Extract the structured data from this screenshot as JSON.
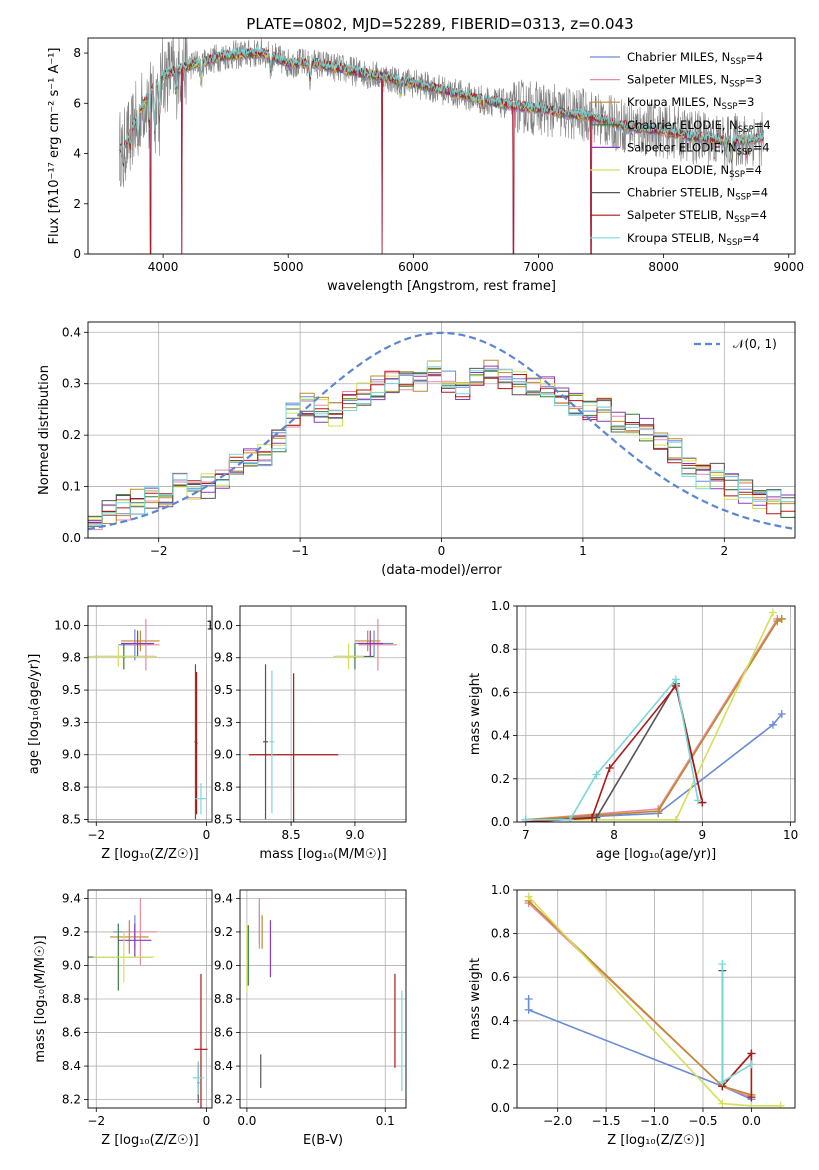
{
  "figure": {
    "title": "PLATE=0802, MJD=52289, FIBERID=0313, z=0.043"
  },
  "series": [
    {
      "name": "Chabrier MILES",
      "nssp": "4",
      "color": "#6a8ad8"
    },
    {
      "name": "Salpeter MILES",
      "nssp": "3",
      "color": "#e88aa0"
    },
    {
      "name": "Kroupa MILES",
      "nssp": "3",
      "color": "#c08a2a"
    },
    {
      "name": "Chabrier ELODIE",
      "nssp": "4",
      "color": "#3a7a3a"
    },
    {
      "name": "Salpeter ELODIE",
      "nssp": "4",
      "color": "#8a3ab8"
    },
    {
      "name": "Kroupa ELODIE",
      "nssp": "4",
      "color": "#d4e05a"
    },
    {
      "name": "Chabrier STELIB",
      "nssp": "4",
      "color": "#555555"
    },
    {
      "name": "Salpeter STELIB",
      "nssp": "4",
      "color": "#b01818"
    },
    {
      "name": "Kroupa STELIB",
      "nssp": "4",
      "color": "#7ad8d8"
    }
  ],
  "chart_data": [
    {
      "id": "spectrum",
      "type": "line",
      "xlabel": "wavelength [Angstrom, rest frame]",
      "ylabel": "Flux [fλ10⁻¹⁷ erg cm⁻² s⁻¹ A⁻¹]",
      "xlim": [
        3400,
        9050
      ],
      "ylim": [
        0,
        8.6
      ],
      "xticks": [
        4000,
        5000,
        6000,
        7000,
        8000,
        9000
      ],
      "yticks": [
        0,
        2,
        4,
        6,
        8
      ],
      "legend": "right",
      "data_color": "#808080",
      "data_range": [
        3650,
        8800
      ],
      "model_range": [
        3650,
        8800
      ],
      "model_continuum": [
        [
          3650,
          4.2
        ],
        [
          3700,
          4.4
        ],
        [
          3800,
          5.5
        ],
        [
          3900,
          6.5
        ],
        [
          4000,
          7.1
        ],
        [
          4200,
          7.5
        ],
        [
          4500,
          7.9
        ],
        [
          4800,
          8.0
        ],
        [
          5000,
          7.6
        ],
        [
          5200,
          7.6
        ],
        [
          5500,
          7.3
        ],
        [
          6000,
          6.8
        ],
        [
          6500,
          6.2
        ],
        [
          6800,
          5.9
        ],
        [
          7000,
          5.8
        ],
        [
          7200,
          5.6
        ],
        [
          7400,
          5.5
        ],
        [
          7600,
          5.2
        ],
        [
          7800,
          5.0
        ],
        [
          8000,
          4.9
        ],
        [
          8200,
          4.7
        ],
        [
          8500,
          4.5
        ],
        [
          8800,
          4.6
        ]
      ],
      "absorption": [
        [
          3680,
          0.8
        ],
        [
          3740,
          0.6
        ],
        [
          3800,
          1.2
        ],
        [
          3890,
          1.3
        ],
        [
          3935,
          1.8
        ],
        [
          3970,
          1.6
        ],
        [
          4102,
          0.8
        ],
        [
          4305,
          0.7
        ],
        [
          4861,
          0.5
        ],
        [
          5175,
          0.6
        ],
        [
          5895,
          0.5
        ],
        [
          6563,
          0.4
        ],
        [
          8498,
          0.5
        ],
        [
          8542,
          0.7
        ],
        [
          8662,
          0.6
        ]
      ],
      "spikes": [
        [
          3900,
          0
        ],
        [
          4150,
          0
        ],
        [
          5750,
          0
        ],
        [
          6800,
          0
        ],
        [
          7420,
          0
        ]
      ]
    },
    {
      "id": "residuals",
      "type": "histogram",
      "xlabel": "(data-model)/error",
      "ylabel": "Normed distribution",
      "xlim": [
        -2.5,
        2.5
      ],
      "ylim": [
        0,
        0.42
      ],
      "xticks": [
        -2,
        -1,
        0,
        1,
        2
      ],
      "yticks": [
        0.0,
        0.1,
        0.2,
        0.3,
        0.4
      ],
      "legend": "top-right",
      "normal_label": "𝒩(0, 1)",
      "normal_color": "#5b86d6",
      "bins": [
        -2.5,
        -2.4,
        -2.3,
        -2.2,
        -2.1,
        -2.0,
        -1.9,
        -1.8,
        -1.7,
        -1.6,
        -1.5,
        -1.4,
        -1.3,
        -1.2,
        -1.1,
        -1.0,
        -0.9,
        -0.8,
        -0.7,
        -0.6,
        -0.5,
        -0.4,
        -0.3,
        -0.2,
        -0.1,
        0.0,
        0.1,
        0.2,
        0.3,
        0.4,
        0.5,
        0.6,
        0.7,
        0.8,
        0.9,
        1.0,
        1.1,
        1.2,
        1.3,
        1.4,
        1.5,
        1.6,
        1.7,
        1.8,
        1.9,
        2.0,
        2.1,
        2.2,
        2.3,
        2.4,
        2.5
      ],
      "hist_base": [
        0.04,
        0.05,
        0.06,
        0.07,
        0.08,
        0.08,
        0.12,
        0.1,
        0.1,
        0.12,
        0.14,
        0.15,
        0.16,
        0.19,
        0.24,
        0.26,
        0.25,
        0.24,
        0.27,
        0.28,
        0.29,
        0.3,
        0.31,
        0.3,
        0.32,
        0.3,
        0.28,
        0.31,
        0.33,
        0.31,
        0.3,
        0.3,
        0.29,
        0.28,
        0.26,
        0.25,
        0.25,
        0.23,
        0.22,
        0.21,
        0.19,
        0.17,
        0.14,
        0.12,
        0.12,
        0.1,
        0.09,
        0.08,
        0.07,
        0.06
      ]
    },
    {
      "id": "age-z",
      "type": "scatter",
      "xlabel": "Z [log₁₀(Z/Z☉)]",
      "ylabel": "age  [log₁₀(age/yr)]",
      "xlim": [
        -2.15,
        0.1
      ],
      "ylim": [
        8.48,
        10.15
      ],
      "xticks": [
        -2,
        0
      ],
      "yticks": [
        8.5,
        8.75,
        9.0,
        9.25,
        9.5,
        9.75,
        10.0
      ],
      "points": [
        {
          "s": 0,
          "x": -1.3,
          "y": 9.85,
          "xe": 0.3,
          "ye": 0.12
        },
        {
          "s": 1,
          "x": -1.1,
          "y": 9.85,
          "xe": 0.25,
          "ye": 0.2
        },
        {
          "s": 2,
          "x": -1.2,
          "y": 9.88,
          "xe": 0.35,
          "ye": 0.08
        },
        {
          "s": 3,
          "x": -1.5,
          "y": 9.76,
          "xe": 0.55,
          "ye": 0.1
        },
        {
          "s": 4,
          "x": -1.25,
          "y": 9.86,
          "xe": 0.3,
          "ye": 0.1
        },
        {
          "s": 5,
          "x": -1.6,
          "y": 9.76,
          "xe": 0.7,
          "ye": 0.08
        },
        {
          "s": 6,
          "x": -0.2,
          "y": 9.1,
          "xe": 0.02,
          "ye": 0.6
        },
        {
          "s": 7,
          "x": -0.18,
          "y": 9.09,
          "xe": 0.02,
          "ye": 0.55
        },
        {
          "s": 8,
          "x": -0.1,
          "y": 8.66,
          "xe": 0.1,
          "ye": 0.12
        }
      ]
    },
    {
      "id": "age-mass",
      "type": "scatter",
      "xlabel": "mass [log₁₀(M/M☉)]",
      "ylabel": "",
      "xlim": [
        8.1,
        9.4
      ],
      "ylim": [
        8.48,
        10.15
      ],
      "xticks": [
        8.5,
        9.0
      ],
      "yticks": [
        8.5,
        8.75,
        9.0,
        9.25,
        9.5,
        9.75,
        10.0
      ],
      "points": [
        {
          "s": 0,
          "x": 9.15,
          "y": 9.86,
          "xe": 0.15,
          "ye": 0.1
        },
        {
          "s": 1,
          "x": 9.18,
          "y": 9.85,
          "xe": 0.15,
          "ye": 0.2
        },
        {
          "s": 2,
          "x": 9.1,
          "y": 9.88,
          "xe": 0.1,
          "ye": 0.08
        },
        {
          "s": 3,
          "x": 9.0,
          "y": 9.76,
          "xe": 0.15,
          "ye": 0.1
        },
        {
          "s": 4,
          "x": 9.12,
          "y": 9.86,
          "xe": 0.1,
          "ye": 0.1
        },
        {
          "s": 5,
          "x": 8.95,
          "y": 9.76,
          "xe": 0.12,
          "ye": 0.1
        },
        {
          "s": 6,
          "x": 8.3,
          "y": 9.1,
          "xe": 0.02,
          "ye": 0.6
        },
        {
          "s": 7,
          "x": 8.52,
          "y": 9.0,
          "xe": 0.35,
          "ye": 0.63
        },
        {
          "s": 8,
          "x": 8.35,
          "y": 9.1,
          "xe": 0.02,
          "ye": 0.55
        }
      ]
    },
    {
      "id": "weight-age",
      "type": "line",
      "xlabel": "age  [log₁₀(age/yr)]",
      "ylabel": "mass weight",
      "xlim": [
        6.9,
        10.05
      ],
      "ylim": [
        0,
        1.0
      ],
      "xticks": [
        7,
        8,
        9,
        10
      ],
      "yticks": [
        0.0,
        0.2,
        0.4,
        0.6,
        0.8,
        1.0
      ],
      "lines": [
        {
          "s": 0,
          "points": [
            [
              7.0,
              0.01
            ],
            [
              8.5,
              0.04
            ],
            [
              9.8,
              0.45
            ],
            [
              9.9,
              0.5
            ]
          ]
        },
        {
          "s": 1,
          "points": [
            [
              7.0,
              0.01
            ],
            [
              8.5,
              0.06
            ],
            [
              9.85,
              0.94
            ],
            [
              9.9,
              0.94
            ]
          ]
        },
        {
          "s": 2,
          "points": [
            [
              7.0,
              0.01
            ],
            [
              8.5,
              0.05
            ],
            [
              9.85,
              0.93
            ],
            [
              9.9,
              0.94
            ]
          ]
        },
        {
          "s": 5,
          "points": [
            [
              7.0,
              0.01
            ],
            [
              8.7,
              0.01
            ],
            [
              9.8,
              0.97
            ]
          ]
        },
        {
          "s": 6,
          "points": [
            [
              7.0,
              0.0
            ],
            [
              7.8,
              0.02
            ],
            [
              8.7,
              0.64
            ],
            [
              9.0,
              0.09
            ]
          ]
        },
        {
          "s": 7,
          "points": [
            [
              7.0,
              0.0
            ],
            [
              7.75,
              0.02
            ],
            [
              7.95,
              0.25
            ],
            [
              8.7,
              0.63
            ],
            [
              9.0,
              0.09
            ]
          ]
        },
        {
          "s": 8,
          "points": [
            [
              7.0,
              0.01
            ],
            [
              7.5,
              0.01
            ],
            [
              7.8,
              0.22
            ],
            [
              8.7,
              0.66
            ],
            [
              8.95,
              0.1
            ]
          ]
        }
      ]
    },
    {
      "id": "mass-z",
      "type": "scatter",
      "xlabel": "Z [log₁₀(Z/Z☉)]",
      "ylabel": "mass [log₁₀(M/M☉)]",
      "xlim": [
        -2.15,
        0.1
      ],
      "ylim": [
        8.15,
        9.45
      ],
      "xticks": [
        -2,
        0
      ],
      "yticks": [
        8.2,
        8.4,
        8.6,
        8.8,
        9.0,
        9.2,
        9.4
      ],
      "points": [
        {
          "s": 0,
          "x": -1.3,
          "y": 9.2,
          "xe": 0.4,
          "ye": 0.1
        },
        {
          "s": 1,
          "x": -1.2,
          "y": 9.2,
          "xe": 0.3,
          "ye": 0.2
        },
        {
          "s": 2,
          "x": -1.4,
          "y": 9.17,
          "xe": 0.35,
          "ye": 0.1
        },
        {
          "s": 3,
          "x": -1.6,
          "y": 9.05,
          "xe": 0.6,
          "ye": 0.2
        },
        {
          "s": 4,
          "x": -1.3,
          "y": 9.15,
          "xe": 0.3,
          "ye": 0.1
        },
        {
          "s": 5,
          "x": -1.5,
          "y": 9.05,
          "xe": 0.55,
          "ye": 0.15
        },
        {
          "s": 6,
          "x": -0.15,
          "y": 8.3,
          "xe": 0.02,
          "ye": 0.12
        },
        {
          "s": 7,
          "x": -0.1,
          "y": 8.5,
          "xe": 0.12,
          "ye": 0.45
        },
        {
          "s": 8,
          "x": -0.15,
          "y": 8.33,
          "xe": 0.1,
          "ye": 0.1
        }
      ]
    },
    {
      "id": "mass-ebv",
      "type": "scatter",
      "xlabel": "E(B-V)",
      "ylabel": "",
      "xlim": [
        -0.005,
        0.115
      ],
      "ylim": [
        8.15,
        9.45
      ],
      "xticks": [
        0.0,
        0.1
      ],
      "yticks": [
        8.2,
        8.4,
        8.6,
        8.8,
        9.0,
        9.2,
        9.4
      ],
      "points": [
        {
          "s": 0,
          "x": 0.009,
          "y": 9.25,
          "xe": 0.0,
          "ye": 0.12
        },
        {
          "s": 1,
          "x": 0.009,
          "y": 9.25,
          "xe": 0.0,
          "ye": 0.15
        },
        {
          "s": 2,
          "x": 0.011,
          "y": 9.2,
          "xe": 0.0,
          "ye": 0.1
        },
        {
          "s": 3,
          "x": 0.001,
          "y": 9.06,
          "xe": 0.0,
          "ye": 0.18
        },
        {
          "s": 4,
          "x": 0.017,
          "y": 9.1,
          "xe": 0.0,
          "ye": 0.17
        },
        {
          "s": 5,
          "x": 0.0,
          "y": 9.04,
          "xe": 0.0,
          "ye": 0.2
        },
        {
          "s": 6,
          "x": 0.01,
          "y": 8.37,
          "xe": 0.0,
          "ye": 0.1
        },
        {
          "s": 7,
          "x": 0.107,
          "y": 8.67,
          "xe": 0.0,
          "ye": 0.28
        },
        {
          "s": 8,
          "x": 0.112,
          "y": 8.55,
          "xe": 0.0,
          "ye": 0.3
        }
      ]
    },
    {
      "id": "weight-z",
      "type": "line",
      "xlabel": "Z [log₁₀(Z/Z☉)]",
      "ylabel": "mass weight",
      "xlim": [
        -2.42,
        0.45
      ],
      "ylim": [
        0,
        1.0
      ],
      "xticks": [
        -2.0,
        -1.5,
        -1.0,
        -0.5,
        0.0
      ],
      "yticks": [
        0.0,
        0.2,
        0.4,
        0.6,
        0.8,
        1.0
      ],
      "lines": [
        {
          "s": 0,
          "points": [
            [
              -2.3,
              0.5
            ],
            [
              -2.3,
              0.45
            ],
            [
              -0.3,
              0.1
            ],
            [
              0.0,
              0.04
            ]
          ]
        },
        {
          "s": 1,
          "points": [
            [
              -2.3,
              0.94
            ],
            [
              -0.3,
              0.1
            ],
            [
              0.0,
              0.05
            ]
          ]
        },
        {
          "s": 2,
          "points": [
            [
              -2.3,
              0.95
            ],
            [
              -0.3,
              0.1
            ],
            [
              0.0,
              0.06
            ]
          ]
        },
        {
          "s": 5,
          "points": [
            [
              -2.3,
              0.97
            ],
            [
              -0.3,
              0.02
            ],
            [
              0.0,
              0.01
            ],
            [
              0.3,
              0.01
            ]
          ]
        },
        {
          "s": 6,
          "points": [
            [
              -0.3,
              0.63
            ],
            [
              -0.3,
              0.1
            ],
            [
              0.0,
              0.25
            ]
          ]
        },
        {
          "s": 7,
          "points": [
            [
              -0.3,
              0.1
            ],
            [
              0.0,
              0.25
            ],
            [
              0.0,
              0.05
            ]
          ]
        },
        {
          "s": 8,
          "points": [
            [
              -0.3,
              0.66
            ],
            [
              -0.3,
              0.12
            ],
            [
              0.0,
              0.2
            ]
          ]
        }
      ]
    }
  ]
}
